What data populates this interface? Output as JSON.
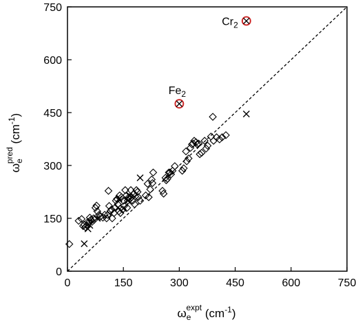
{
  "chart_data": {
    "type": "scatter",
    "title": "",
    "xlabel": {
      "symbol": "ω",
      "sub": "e",
      "sup": "expt",
      "unit": "(cm",
      "unit_exp": "-1",
      "unit_end": ")"
    },
    "ylabel": {
      "symbol": "ω",
      "sub": "e",
      "sup": "pred",
      "unit": "(cm",
      "unit_exp": "-1",
      "unit_end": ")"
    },
    "xlim": [
      0,
      750
    ],
    "ylim": [
      0,
      750
    ],
    "xticks": [
      "0",
      "150",
      "300",
      "450",
      "600",
      "750"
    ],
    "yticks": [
      "0",
      "150",
      "300",
      "450",
      "600",
      "750"
    ],
    "reference_line": {
      "style": "dashed",
      "x": [
        0,
        750
      ],
      "y": [
        0,
        750
      ]
    },
    "series": [
      {
        "marker": "diamond",
        "points": [
          [
            5,
            77
          ],
          [
            30,
            143
          ],
          [
            38,
            148
          ],
          [
            42,
            128
          ],
          [
            45,
            132
          ],
          [
            48,
            125
          ],
          [
            52,
            130
          ],
          [
            55,
            140
          ],
          [
            58,
            138
          ],
          [
            60,
            152
          ],
          [
            63,
            146
          ],
          [
            66,
            140
          ],
          [
            70,
            150
          ],
          [
            72,
            146
          ],
          [
            75,
            180
          ],
          [
            78,
            186
          ],
          [
            80,
            170
          ],
          [
            85,
            160
          ],
          [
            88,
            155
          ],
          [
            95,
            152
          ],
          [
            100,
            160
          ],
          [
            105,
            150
          ],
          [
            108,
            160
          ],
          [
            110,
            228
          ],
          [
            112,
            185
          ],
          [
            115,
            170
          ],
          [
            118,
            175
          ],
          [
            120,
            150
          ],
          [
            125,
            165
          ],
          [
            128,
            180
          ],
          [
            130,
            200
          ],
          [
            133,
            205
          ],
          [
            135,
            190
          ],
          [
            138,
            170
          ],
          [
            140,
            215
          ],
          [
            142,
            165
          ],
          [
            145,
            210
          ],
          [
            148,
            175
          ],
          [
            150,
            200
          ],
          [
            152,
            185
          ],
          [
            155,
            230
          ],
          [
            158,
            215
          ],
          [
            160,
            180
          ],
          [
            162,
            200
          ],
          [
            165,
            210
          ],
          [
            168,
            205
          ],
          [
            170,
            230
          ],
          [
            172,
            210
          ],
          [
            175,
            200
          ],
          [
            178,
            220
          ],
          [
            180,
            190
          ],
          [
            182,
            212
          ],
          [
            185,
            230
          ],
          [
            188,
            225
          ],
          [
            190,
            210
          ],
          [
            195,
            200
          ],
          [
            210,
            215
          ],
          [
            215,
            248
          ],
          [
            218,
            210
          ],
          [
            222,
            232
          ],
          [
            226,
            260
          ],
          [
            228,
            250
          ],
          [
            230,
            280
          ],
          [
            255,
            228
          ],
          [
            258,
            220
          ],
          [
            263,
            265
          ],
          [
            265,
            258
          ],
          [
            268,
            262
          ],
          [
            272,
            280
          ],
          [
            275,
            280
          ],
          [
            278,
            275
          ],
          [
            282,
            285
          ],
          [
            288,
            298
          ],
          [
            308,
            285
          ],
          [
            312,
            292
          ],
          [
            318,
            340
          ],
          [
            320,
            312
          ],
          [
            325,
            320
          ],
          [
            330,
            350
          ],
          [
            334,
            360
          ],
          [
            337,
            362
          ],
          [
            340,
            370
          ],
          [
            345,
            366
          ],
          [
            348,
            360
          ],
          [
            352,
            362
          ],
          [
            355,
            332
          ],
          [
            360,
            336
          ],
          [
            368,
            370
          ],
          [
            372,
            348
          ],
          [
            376,
            356
          ],
          [
            385,
            382
          ],
          [
            390,
            438
          ],
          [
            392,
            370
          ],
          [
            400,
            380
          ],
          [
            408,
            374
          ],
          [
            415,
            380
          ],
          [
            425,
            386
          ]
        ]
      },
      {
        "marker": "cross",
        "points": [
          [
            45,
            78
          ],
          [
            55,
            120
          ],
          [
            60,
            130
          ],
          [
            80,
            150
          ],
          [
            135,
            180
          ],
          [
            138,
            205
          ],
          [
            150,
            178
          ],
          [
            162,
            200
          ],
          [
            165,
            215
          ],
          [
            195,
            265
          ],
          [
            480,
            446
          ]
        ]
      },
      {
        "marker": "circled-cross",
        "color": "#cc1f1f",
        "points": [
          [
            300,
            475,
            "Fe",
            "2"
          ],
          [
            480,
            710,
            "Cr",
            "2"
          ]
        ]
      }
    ]
  }
}
